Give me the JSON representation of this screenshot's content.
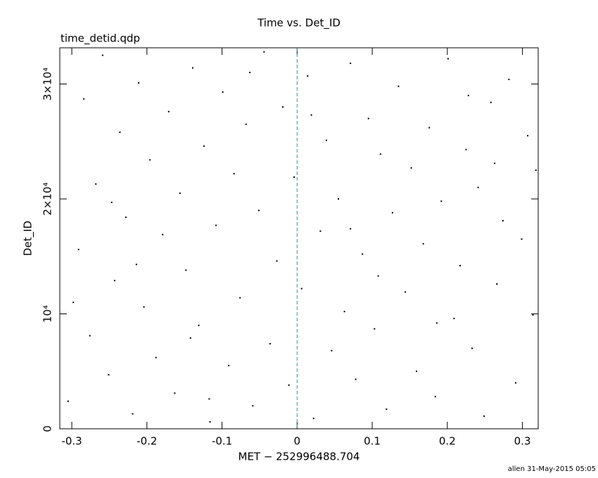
{
  "chart_data": {
    "type": "scatter",
    "title": "Time vs. Det_ID",
    "subtitle": "time_detid.qdp",
    "x_label": "MET − 252996488.704",
    "y_label": "Det_ID",
    "footer": "allen 31-May-2015 05:05",
    "color": "#000000",
    "vline": {
      "value": 0,
      "color": "#2a9d9d"
    },
    "xlim": [
      -0.316,
      0.321
    ],
    "ylim": [
      0,
      33150
    ],
    "xticks": [
      -0.3,
      -0.2,
      -0.1,
      0,
      0.1,
      0.2,
      0.3
    ],
    "yticks": [
      0,
      {
        "value": 10000,
        "label": "10⁴"
      },
      {
        "value": 20000,
        "label": "2×10⁴"
      },
      {
        "value": 30000,
        "label": "3×10⁴"
      }
    ],
    "x": [
      -0.305,
      -0.291,
      -0.284,
      -0.276,
      -0.268,
      -0.259,
      -0.251,
      -0.243,
      -0.236,
      -0.228,
      -0.219,
      -0.211,
      -0.204,
      -0.196,
      -0.188,
      -0.179,
      -0.171,
      -0.163,
      -0.156,
      -0.148,
      -0.139,
      -0.131,
      -0.124,
      -0.116,
      -0.108,
      -0.099,
      -0.091,
      -0.084,
      -0.076,
      -0.068,
      -0.059,
      -0.051,
      -0.044,
      -0.036,
      -0.027,
      -0.019,
      -0.011,
      -0.004,
      0.006,
      0.014,
      0.022,
      0.031,
      0.039,
      0.046,
      0.055,
      0.063,
      0.071,
      0.078,
      0.087,
      0.095,
      0.103,
      0.111,
      0.119,
      0.127,
      0.135,
      0.144,
      0.152,
      0.159,
      0.168,
      0.176,
      0.184,
      0.192,
      0.201,
      0.209,
      0.217,
      0.225,
      0.233,
      0.241,
      0.249,
      0.258,
      0.266,
      0.274,
      0.282,
      0.291,
      0.299,
      0.307,
      0.314,
      0.318,
      -0.298,
      -0.214,
      -0.142,
      -0.063,
      0.019,
      0.108,
      0.186,
      0.263,
      -0.247,
      -0.117,
      0.071,
      0.228
    ],
    "y": [
      2400,
      15600,
      28700,
      8100,
      21300,
      32500,
      4700,
      12900,
      25800,
      18400,
      1300,
      30100,
      10600,
      23400,
      6200,
      16900,
      27600,
      3100,
      20500,
      13800,
      31400,
      9000,
      24600,
      600,
      17700,
      29300,
      5500,
      22200,
      11400,
      26500,
      2000,
      19000,
      32800,
      7400,
      14600,
      28000,
      3800,
      21900,
      12200,
      30700,
      900,
      17200,
      25100,
      6800,
      20000,
      10200,
      31800,
      4300,
      15200,
      27000,
      8700,
      23900,
      1700,
      18800,
      29800,
      11900,
      22700,
      5000,
      16100,
      26200,
      2800,
      19800,
      32200,
      9600,
      14200,
      24300,
      7000,
      21000,
      1100,
      28400,
      12600,
      18100,
      30400,
      4000,
      16500,
      25500,
      9900,
      22500,
      11000,
      14300,
      7900,
      31000,
      27300,
      13300,
      9200,
      23100,
      19700,
      2600,
      17400,
      29000
    ]
  }
}
